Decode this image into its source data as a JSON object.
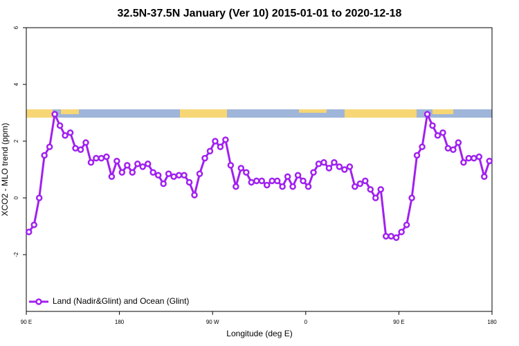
{
  "chart_data": {
    "type": "line",
    "title": "32.5N-37.5N January (Ver 10)   2015-01-01 to 2020-12-18",
    "xlabel": "Longitude (deg E)",
    "ylabel": "XCO2 - MLO trend (ppm)",
    "x": [
      92.5,
      97.5,
      102.5,
      107.5,
      112.5,
      117.5,
      122.5,
      127.5,
      132.5,
      137.5,
      142.5,
      147.5,
      152.5,
      157.5,
      162.5,
      167.5,
      172.5,
      177.5,
      182.5,
      187.5,
      192.5,
      197.5,
      202.5,
      207.5,
      212.5,
      217.5,
      222.5,
      227.5,
      232.5,
      237.5,
      242.5,
      247.5,
      252.5,
      257.5,
      262.5,
      267.5,
      272.5,
      277.5,
      282.5,
      287.5,
      292.5,
      297.5,
      302.5,
      307.5,
      312.5,
      317.5,
      322.5,
      327.5,
      332.5,
      337.5,
      342.5,
      347.5,
      352.5,
      357.5,
      362.5,
      367.5,
      372.5,
      377.5,
      382.5,
      387.5,
      392.5,
      397.5,
      402.5,
      407.5,
      412.5,
      417.5,
      422.5,
      427.5,
      432.5,
      437.5,
      442.5,
      447.5,
      452.5,
      457.5,
      462.5,
      467.5,
      472.5,
      477.5,
      482.5,
      487.5,
      492.5,
      497.5,
      502.5,
      507.5,
      512.5,
      517.5,
      522.5,
      527.5,
      532.5,
      537.5
    ],
    "series": [
      {
        "name": "Land (Nadir&Glint) and Ocean (Glint)",
        "color": "#a020f0",
        "values": [
          -1.2,
          -0.95,
          0,
          1.5,
          1.8,
          2.95,
          2.55,
          2.2,
          2.3,
          1.75,
          1.7,
          1.95,
          1.25,
          1.4,
          1.4,
          1.45,
          0.75,
          1.3,
          0.9,
          1.15,
          0.9,
          1.2,
          1.1,
          1.2,
          0.9,
          0.8,
          0.5,
          0.85,
          0.75,
          0.8,
          0.8,
          0.55,
          0.1,
          0.85,
          1.4,
          1.65,
          2.0,
          1.8,
          2.05,
          1.15,
          0.4,
          1.05,
          0.9,
          0.55,
          0.6,
          0.6,
          0.45,
          0.6,
          0.6,
          0.4,
          0.75,
          0.4,
          0.8,
          0.6,
          0.4,
          0.9,
          1.2,
          1.25,
          1.05,
          1.25,
          1.1,
          1.0,
          1.1,
          0.4,
          0.5,
          0.6,
          0.3,
          0,
          0.3,
          -1.35,
          -1.35,
          -1.4,
          -1.2,
          -0.95,
          0,
          1.5,
          1.8,
          2.95,
          2.55,
          2.2,
          2.3,
          1.75,
          1.7,
          1.95,
          1.25,
          1.4,
          1.4,
          1.45,
          0.75,
          1.3
        ]
      }
    ],
    "xlim": [
      90,
      540
    ],
    "xticks": [
      {
        "value": 90,
        "label": "90 E"
      },
      180,
      {
        "value": 270,
        "label": "90 W"
      },
      {
        "value": 360,
        "label": "0"
      },
      {
        "value": 450,
        "label": "90 E"
      },
      {
        "value": 540,
        "label": "180"
      }
    ],
    "ylim": [
      -4,
      6
    ],
    "yticks": [
      -2,
      0,
      2,
      4,
      6
    ],
    "legend": "bottom-left"
  }
}
